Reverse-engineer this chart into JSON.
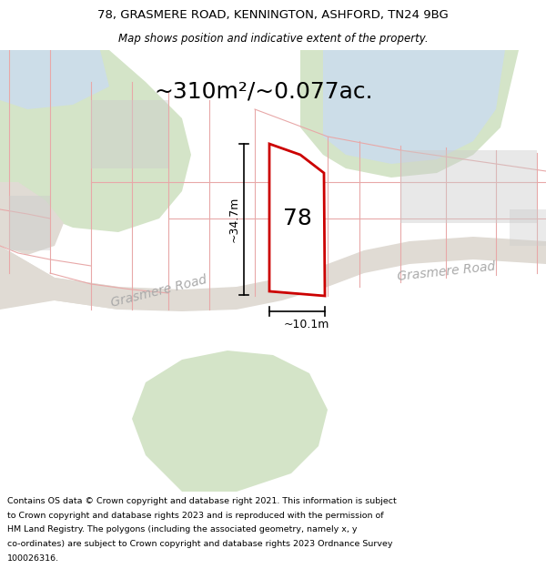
{
  "title_line1": "78, GRASMERE ROAD, KENNINGTON, ASHFORD, TN24 9BG",
  "title_line2": "Map shows position and indicative extent of the property.",
  "area_text": "~310m²/~0.077ac.",
  "dim_vertical": "~34.7m",
  "dim_horizontal": "~10.1m",
  "label_78": "78",
  "road_label_left": "Grasmere Road",
  "road_label_right": "Grasmere Road",
  "footer_lines": [
    "Contains OS data © Crown copyright and database right 2021. This information is subject",
    "to Crown copyright and database rights 2023 and is reproduced with the permission of",
    "HM Land Registry. The polygons (including the associated geometry, namely x, y",
    "co-ordinates) are subject to Crown copyright and database rights 2023 Ordnance Survey",
    "100026316."
  ],
  "map_bg": "#f7f4f0",
  "white_bg": "#ffffff",
  "red_outline": "#cc0000",
  "pink_lines": "#e8a8a8",
  "green_area": "#d4e4c8",
  "blue_area": "#ccdde8",
  "road_gray": "#e0dbd4",
  "gray_block": "#cccccc",
  "road_label_color": "#aaaaaa",
  "title_fontsize": 9.5,
  "subtitle_fontsize": 8.5,
  "area_fontsize": 18,
  "label_fontsize": 18,
  "dim_fontsize": 9,
  "road_fontsize": 10,
  "footer_fontsize": 6.8
}
